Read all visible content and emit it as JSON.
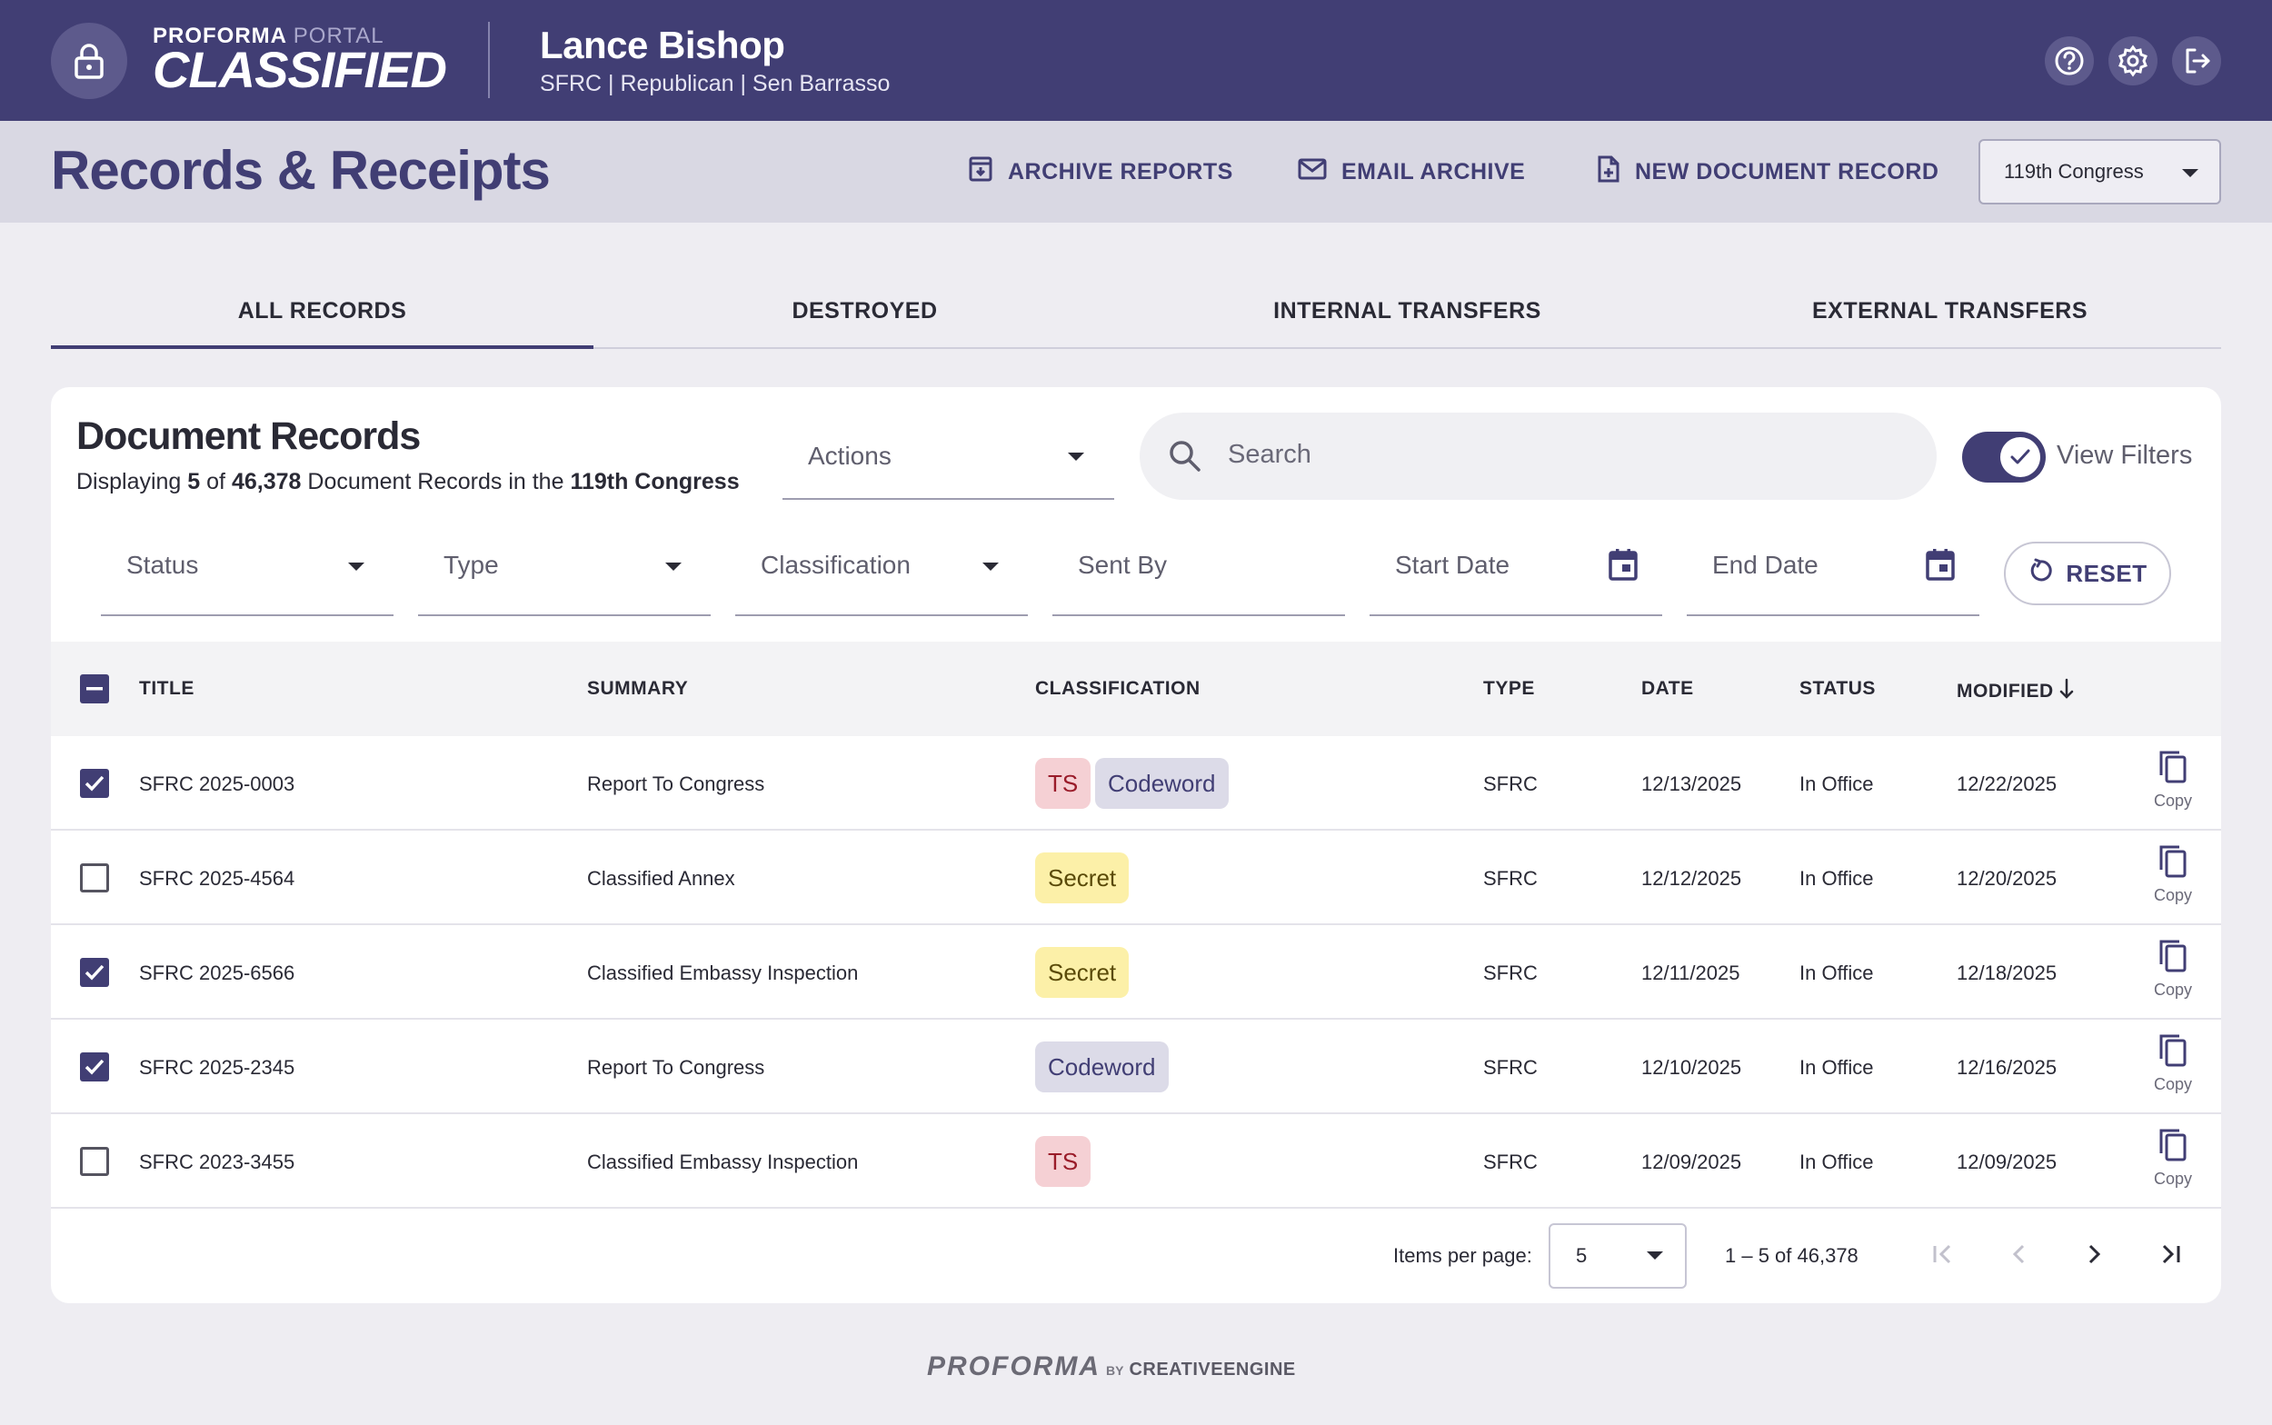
{
  "app": {
    "logo_top": "PROFORMA",
    "logo_portal": "PORTAL",
    "logo_main": "CLASSIFIED"
  },
  "user": {
    "name": "Lance Bishop",
    "subtitle": "SFRC | Republican | Sen Barrasso"
  },
  "header": {
    "title": "Records & Receipts",
    "archive_reports": "ARCHIVE REPORTS",
    "email_archive": "EMAIL ARCHIVE",
    "new_document_record": "NEW DOCUMENT RECORD",
    "congress_selected": "119th Congress"
  },
  "tabs": [
    {
      "label": "ALL RECORDS",
      "active": true
    },
    {
      "label": "DESTROYED",
      "active": false
    },
    {
      "label": "INTERNAL TRANSFERS",
      "active": false
    },
    {
      "label": "EXTERNAL TRANSFERS",
      "active": false
    }
  ],
  "card": {
    "title": "Document Records",
    "sub_prefix": "Displaying",
    "sub_count": "5",
    "sub_of": "of",
    "sub_total": "46,378",
    "sub_middle": "Document Records in the",
    "sub_congress": "119th Congress",
    "actions_label": "Actions",
    "search_placeholder": "Search",
    "view_filters_label": "View Filters",
    "view_filters_on": true
  },
  "filters": {
    "status": "Status",
    "type": "Type",
    "classification": "Classification",
    "sent_by": "Sent By",
    "start_date": "Start Date",
    "end_date": "End Date",
    "reset": "RESET"
  },
  "table": {
    "columns": {
      "title": "TITLE",
      "summary": "SUMMARY",
      "classification": "CLASSIFICATION",
      "type": "TYPE",
      "date": "DATE",
      "status": "STATUS",
      "modified": "MODIFIED"
    },
    "copy_label": "Copy",
    "rows": [
      {
        "checked": true,
        "title": "SFRC 2025-0003",
        "summary": "Report To Congress",
        "badges": [
          "TS",
          "Codeword"
        ],
        "type": "SFRC",
        "date": "12/13/2025",
        "status": "In Office",
        "modified": "12/22/2025"
      },
      {
        "checked": false,
        "title": "SFRC 2025-4564",
        "summary": "Classified Annex",
        "badges": [
          "Secret"
        ],
        "type": "SFRC",
        "date": "12/12/2025",
        "status": "In Office",
        "modified": "12/20/2025"
      },
      {
        "checked": true,
        "title": "SFRC 2025-6566",
        "summary": "Classified Embassy Inspection",
        "badges": [
          "Secret"
        ],
        "type": "SFRC",
        "date": "12/11/2025",
        "status": "In Office",
        "modified": "12/18/2025"
      },
      {
        "checked": true,
        "title": "SFRC 2025-2345",
        "summary": "Report To Congress",
        "badges": [
          "Codeword"
        ],
        "type": "SFRC",
        "date": "12/10/2025",
        "status": "In Office",
        "modified": "12/16/2025"
      },
      {
        "checked": false,
        "title": "SFRC 2023-3455",
        "summary": "Classified Embassy Inspection",
        "badges": [
          "TS"
        ],
        "type": "SFRC",
        "date": "12/09/2025",
        "status": "In Office",
        "modified": "12/09/2025"
      }
    ]
  },
  "pagination": {
    "items_per_page_label": "Items per page:",
    "items_per_page": "5",
    "range": "1 – 5  of  46,378"
  },
  "footer": {
    "brand": "PROFORMA",
    "by": "BY",
    "creative": "CREATIVE",
    "engine": "ENGINE"
  },
  "colors": {
    "primary": "#413e74",
    "badge_ts": "#f5d0d4",
    "badge_codeword": "#dcdbe8",
    "badge_secret": "#fcf0a8"
  }
}
